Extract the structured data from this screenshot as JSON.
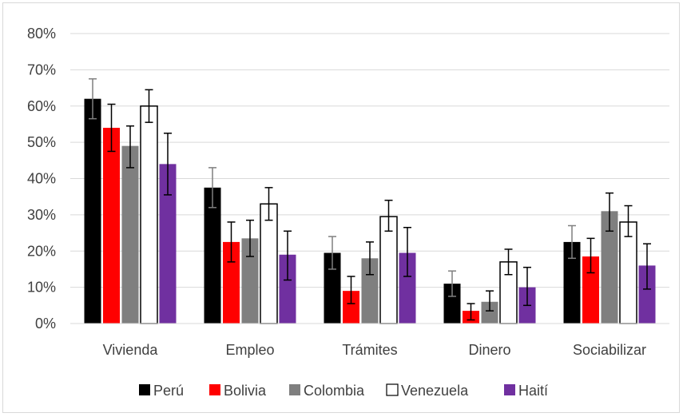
{
  "chart_data": {
    "type": "bar",
    "title": "",
    "xlabel": "",
    "ylabel": "",
    "ylim": [
      0,
      80
    ],
    "y_tick_labels": [
      "0%",
      "10%",
      "20%",
      "30%",
      "40%",
      "50%",
      "60%",
      "70%",
      "80%"
    ],
    "grid": true,
    "legend_position": "bottom",
    "categories": [
      "Vivienda",
      "Empleo",
      "Trámites",
      "Dinero",
      "Sociabilizar"
    ],
    "series": [
      {
        "name": "Perú",
        "color": "#000000",
        "values": [
          62,
          37.5,
          19.5,
          11,
          22.5
        ],
        "err_low": [
          56.5,
          32,
          15,
          7.5,
          18
        ],
        "err_high": [
          67.5,
          43,
          24,
          14.5,
          27
        ]
      },
      {
        "name": "Bolivia",
        "color": "#ff0000",
        "values": [
          54,
          22.5,
          9,
          3.5,
          18.5
        ],
        "err_low": [
          47.5,
          17,
          5.5,
          1,
          14
        ],
        "err_high": [
          60.5,
          28,
          13,
          5.5,
          23.5
        ]
      },
      {
        "name": "Colombia",
        "color": "#7f7f7f",
        "values": [
          49,
          23.5,
          18,
          6,
          31
        ],
        "err_low": [
          43,
          18.5,
          13.5,
          3.5,
          25.5
        ],
        "err_high": [
          54.5,
          28.5,
          22.5,
          9,
          36
        ]
      },
      {
        "name": "Venezuela",
        "color": "#ffffff",
        "stroke": "#000000",
        "values": [
          60,
          33,
          29.5,
          17,
          28
        ],
        "err_low": [
          55.5,
          28.5,
          25.5,
          13.5,
          24
        ],
        "err_high": [
          64.5,
          37.5,
          34,
          20.5,
          32.5
        ]
      },
      {
        "name": "Haití",
        "color": "#7030a0",
        "values": [
          44,
          19,
          19.5,
          10,
          16
        ],
        "err_low": [
          35.5,
          12,
          13,
          5,
          9.5
        ],
        "err_high": [
          52.5,
          25.5,
          26.5,
          15.5,
          22
        ]
      }
    ]
  }
}
